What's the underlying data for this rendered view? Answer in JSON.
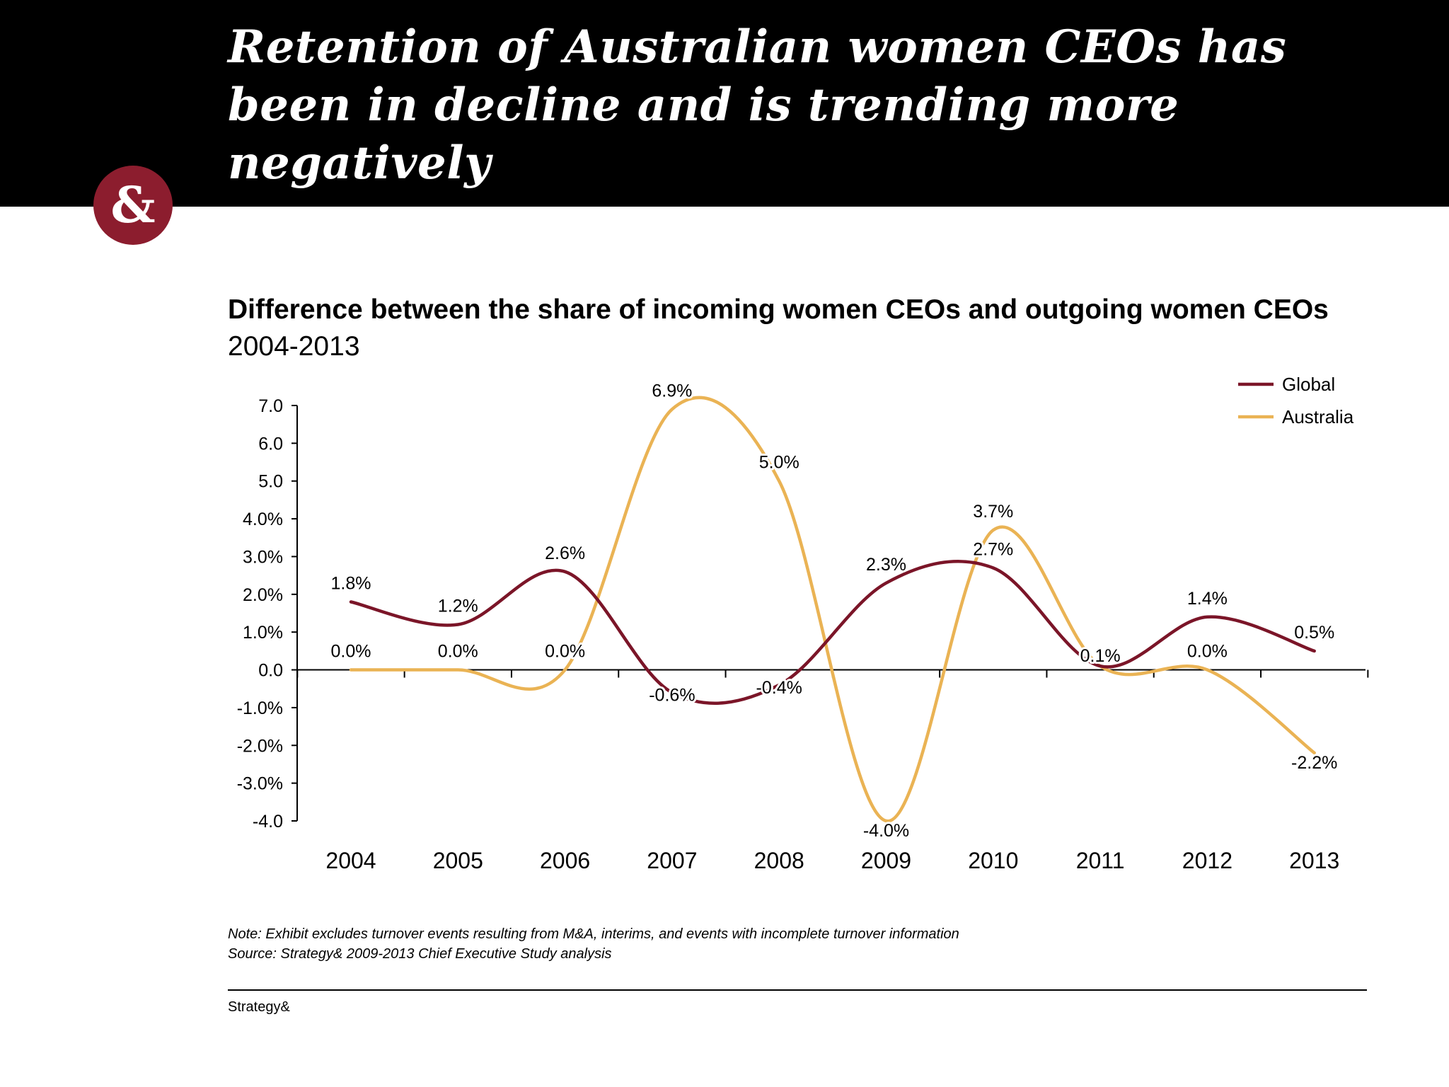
{
  "slide": {
    "title": "Retention of Australian women CEOs has been in decline and is trending more negatively",
    "badge": "&",
    "notes": {
      "note": "Note: Exhibit excludes turnover events resulting from M&A, interims, and events with incomplete turnover information",
      "source": "Source: Strategy& 2009-2013 Chief Executive Study analysis"
    },
    "footer": "Strategy&"
  },
  "colors": {
    "global": "#7b1528",
    "australia": "#eab354",
    "badge": "#8c1d2e"
  },
  "chart_data": {
    "type": "line",
    "title": "Difference between the share of incoming women CEOs and outgoing women CEOs",
    "subtitle": "2004-2013",
    "categories": [
      "2004",
      "2005",
      "2006",
      "2007",
      "2008",
      "2009",
      "2010",
      "2011",
      "2012",
      "2013"
    ],
    "ylim": [
      -4,
      7
    ],
    "y_ticks": [
      {
        "value": 7,
        "label": "7.0"
      },
      {
        "value": 6,
        "label": "6.0"
      },
      {
        "value": 5,
        "label": "5.0"
      },
      {
        "value": 4,
        "label": "4.0%"
      },
      {
        "value": 3,
        "label": "3.0%"
      },
      {
        "value": 2,
        "label": "2.0%"
      },
      {
        "value": 1,
        "label": "1.0%"
      },
      {
        "value": 0,
        "label": "0.0"
      },
      {
        "value": -1,
        "label": "-1.0%"
      },
      {
        "value": -2,
        "label": "-2.0%"
      },
      {
        "value": -3,
        "label": "-3.0%"
      },
      {
        "value": -4,
        "label": "-4.0"
      }
    ],
    "legend_position": "top-right",
    "grid": false,
    "series": [
      {
        "name": "Global",
        "color_key": "global",
        "values": [
          1.8,
          1.2,
          2.6,
          -0.6,
          -0.4,
          2.3,
          2.7,
          0.1,
          1.4,
          0.5
        ],
        "labels": [
          "1.8%",
          "1.2%",
          "2.6%",
          "-0.6%",
          "-0.4%",
          "2.3%",
          "2.7%",
          "0.1%",
          "1.4%",
          "0.5%"
        ]
      },
      {
        "name": "Australia",
        "color_key": "australia",
        "values": [
          0.0,
          0.0,
          0.0,
          6.9,
          5.0,
          -4.0,
          3.7,
          0.1,
          0.0,
          -2.2
        ],
        "labels": [
          "0.0%",
          "0.0%",
          "0.0%",
          "6.9%",
          "5.0%",
          "-4.0%",
          "3.7%",
          "",
          "0.0%",
          "-2.2%"
        ]
      }
    ]
  }
}
